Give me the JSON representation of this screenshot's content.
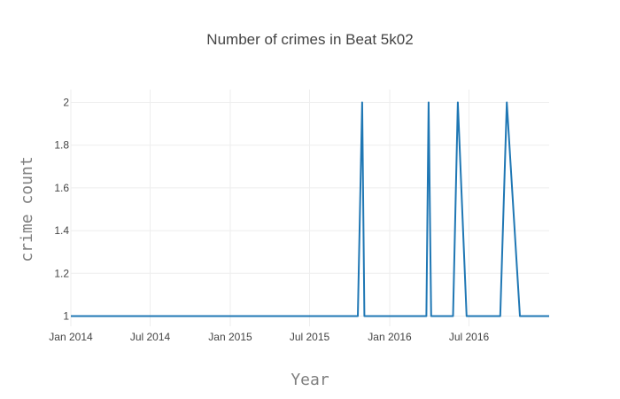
{
  "chart_data": {
    "type": "line",
    "title": "Number of crimes in Beat 5k02",
    "xlabel": "Year",
    "ylabel": "crime count",
    "x_ticks": [
      "Jan 2014",
      "Jul 2014",
      "Jan 2015",
      "Jul 2015",
      "Jan 2016",
      "Jul 2016"
    ],
    "y_ticks": [
      "1",
      "1.2",
      "1.4",
      "1.6",
      "1.8",
      "2"
    ],
    "xlim": [
      "2014-01-01",
      "2016-12-31"
    ],
    "ylim": [
      0.95,
      2.05
    ],
    "grid": true,
    "series": [
      {
        "color": "#1f77b4",
        "x": [
          "2014-01-01",
          "2015-10-20",
          "2015-10-30",
          "2015-11-04",
          "2016-03-25",
          "2016-03-30",
          "2016-04-05",
          "2016-05-25",
          "2016-06-05",
          "2016-06-25",
          "2016-09-10",
          "2016-09-25",
          "2016-10-25",
          "2016-12-31"
        ],
        "y": [
          1,
          1,
          2,
          1,
          1,
          2,
          1,
          1,
          2,
          1,
          1,
          2,
          1,
          1
        ]
      }
    ]
  }
}
